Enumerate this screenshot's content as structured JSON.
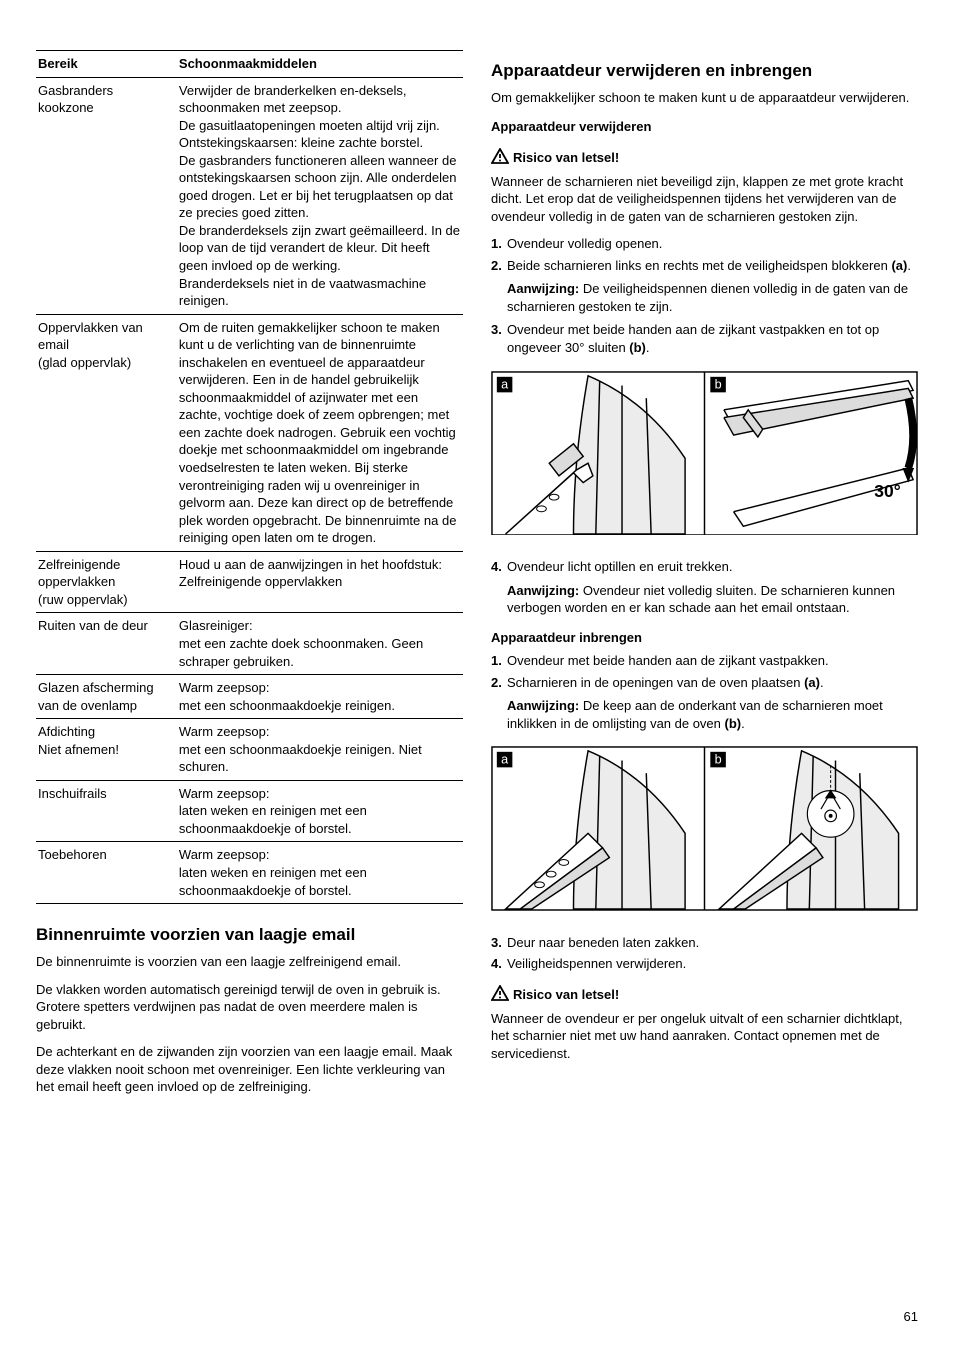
{
  "table": {
    "headers": [
      "Bereik",
      "Schoonmaakmiddelen"
    ],
    "rows": [
      [
        "Gasbranders kookzone",
        "Verwijder de branderkelken en-deksels, schoonmaken met zeepsop.\nDe gasuitlaatopeningen moeten altijd vrij zijn.\nOntstekingskaarsen: kleine zachte borstel.\nDe gasbranders functioneren alleen wanneer de ontstekingskaarsen schoon zijn. Alle onderdelen goed drogen. Let er bij het terugplaatsen op dat ze precies goed zitten.\nDe branderdeksels zijn zwart geëmailleerd. In de loop van de tijd verandert de kleur. Dit heeft geen invloed op de werking.\nBranderdeksels niet in de vaatwasmachine reinigen."
      ],
      [
        "Oppervlakken van email\n(glad oppervlak)",
        "Om de ruiten gemakkelijker schoon te maken kunt u de verlichting van de binnenruimte inschakelen en eventueel de apparaatdeur verwijderen. Een in de handel gebruikelijk schoonmaakmiddel of azijnwater met een zachte, vochtige doek of zeem opbrengen; met een zachte doek nadrogen. Gebruik een vochtig doekje met schoonmaakmiddel om ingebrande voedselresten te laten weken. Bij sterke verontreiniging raden wij u ovenreiniger in gelvorm aan. Deze kan direct op de betreffende plek worden opgebracht. De binnenruimte na de reiniging open laten om te drogen."
      ],
      [
        "Zelfreinigende oppervlakken\n(ruw oppervlak)",
        "Houd u aan de aanwijzingen in het hoofdstuk: Zelfreinigende oppervlakken"
      ],
      [
        "Ruiten van de deur",
        "Glasreiniger:\nmet een zachte doek schoonmaken. Geen schraper gebruiken."
      ],
      [
        "Glazen afscherming van de ovenlamp",
        "Warm zeepsop:\nmet een schoonmaakdoekje reinigen."
      ],
      [
        "Afdichting\nNiet afnemen!",
        "Warm zeepsop:\nmet een schoonmaakdoekje reinigen. Niet schuren."
      ],
      [
        "Inschuifrails",
        "Warm zeepsop:\nlaten weken en reinigen met een schoonmaakdoekje of borstel."
      ],
      [
        "Toebehoren",
        "Warm zeepsop:\nlaten weken en reinigen met een schoonmaakdoekje of borstel."
      ]
    ]
  },
  "left_section": {
    "title": "Binnenruimte voorzien van laagje email",
    "p1": "De binnenruimte is voorzien van een laagje zelfreinigend email.",
    "p2": "De vlakken worden automatisch gereinigd terwijl de oven in gebruik is. Grotere spetters verdwijnen pas nadat de oven meerdere malen is gebruikt.",
    "p3": "De achterkant en de zijwanden zijn voorzien van een laagje email. Maak deze vlakken nooit schoon met ovenreiniger. Een lichte verkleuring van het email heeft geen invloed op de zelfreiniging."
  },
  "right_section": {
    "title": "Apparaatdeur verwijderen en inbrengen",
    "intro": "Om gemakkelijker schoon te maken kunt u de apparaatdeur verwijderen.",
    "sub1": "Apparaatdeur verwijderen",
    "warn1_label": "Risico van letsel!",
    "warn1_text": "Wanneer de scharnieren niet beveiligd zijn, klappen ze met grote kracht dicht. Let erop dat de veiligheidspennen tijdens het verwijderen van de ovendeur volledig in de gaten van de scharnieren gestoken zijn.",
    "steps1": [
      "Ovendeur volledig openen.",
      "Beide scharnieren links en rechts met de veiligheidspen blokkeren (a).",
      "Ovendeur met beide handen aan de zijkant vastpakken en tot op ongeveer 30° sluiten (b)."
    ],
    "aanw1_label": "Aanwijzing:",
    "aanw1_text": "De veiligheidspennen dienen volledig in de gaten van de scharnieren gestoken te zijn.",
    "step4": "Ovendeur licht optillen en eruit trekken.",
    "aanw2_label": "Aanwijzing:",
    "aanw2_text": "Ovendeur niet volledig sluiten. De scharnieren kunnen verbogen worden en er kan schade aan het email ontstaan.",
    "sub2": "Apparaatdeur inbrengen",
    "steps2": [
      "Ovendeur met beide handen aan de zijkant vastpakken.",
      "Scharnieren in de openingen van de oven plaatsen (a)."
    ],
    "aanw3_label": "Aanwijzing:",
    "aanw3_text": "De keep aan de onderkant van de scharnieren moet inklikken in de omlijsting van de oven (b).",
    "step3b": "Deur naar beneden laten zakken.",
    "step4b": "Veiligheidspennen verwijderen.",
    "warn2_label": "Risico van letsel!",
    "warn2_text": "Wanneer de ovendeur er per ongeluk uitvalt of een scharnier dichtklapt, het scharnier niet met uw hand aanraken. Contact opnemen met de servicedienst.",
    "diagram1": {
      "label_a": "a",
      "label_b": "b",
      "angle": "30°"
    },
    "diagram2": {
      "label_a": "a",
      "label_b": "b"
    }
  },
  "page_number": "61"
}
